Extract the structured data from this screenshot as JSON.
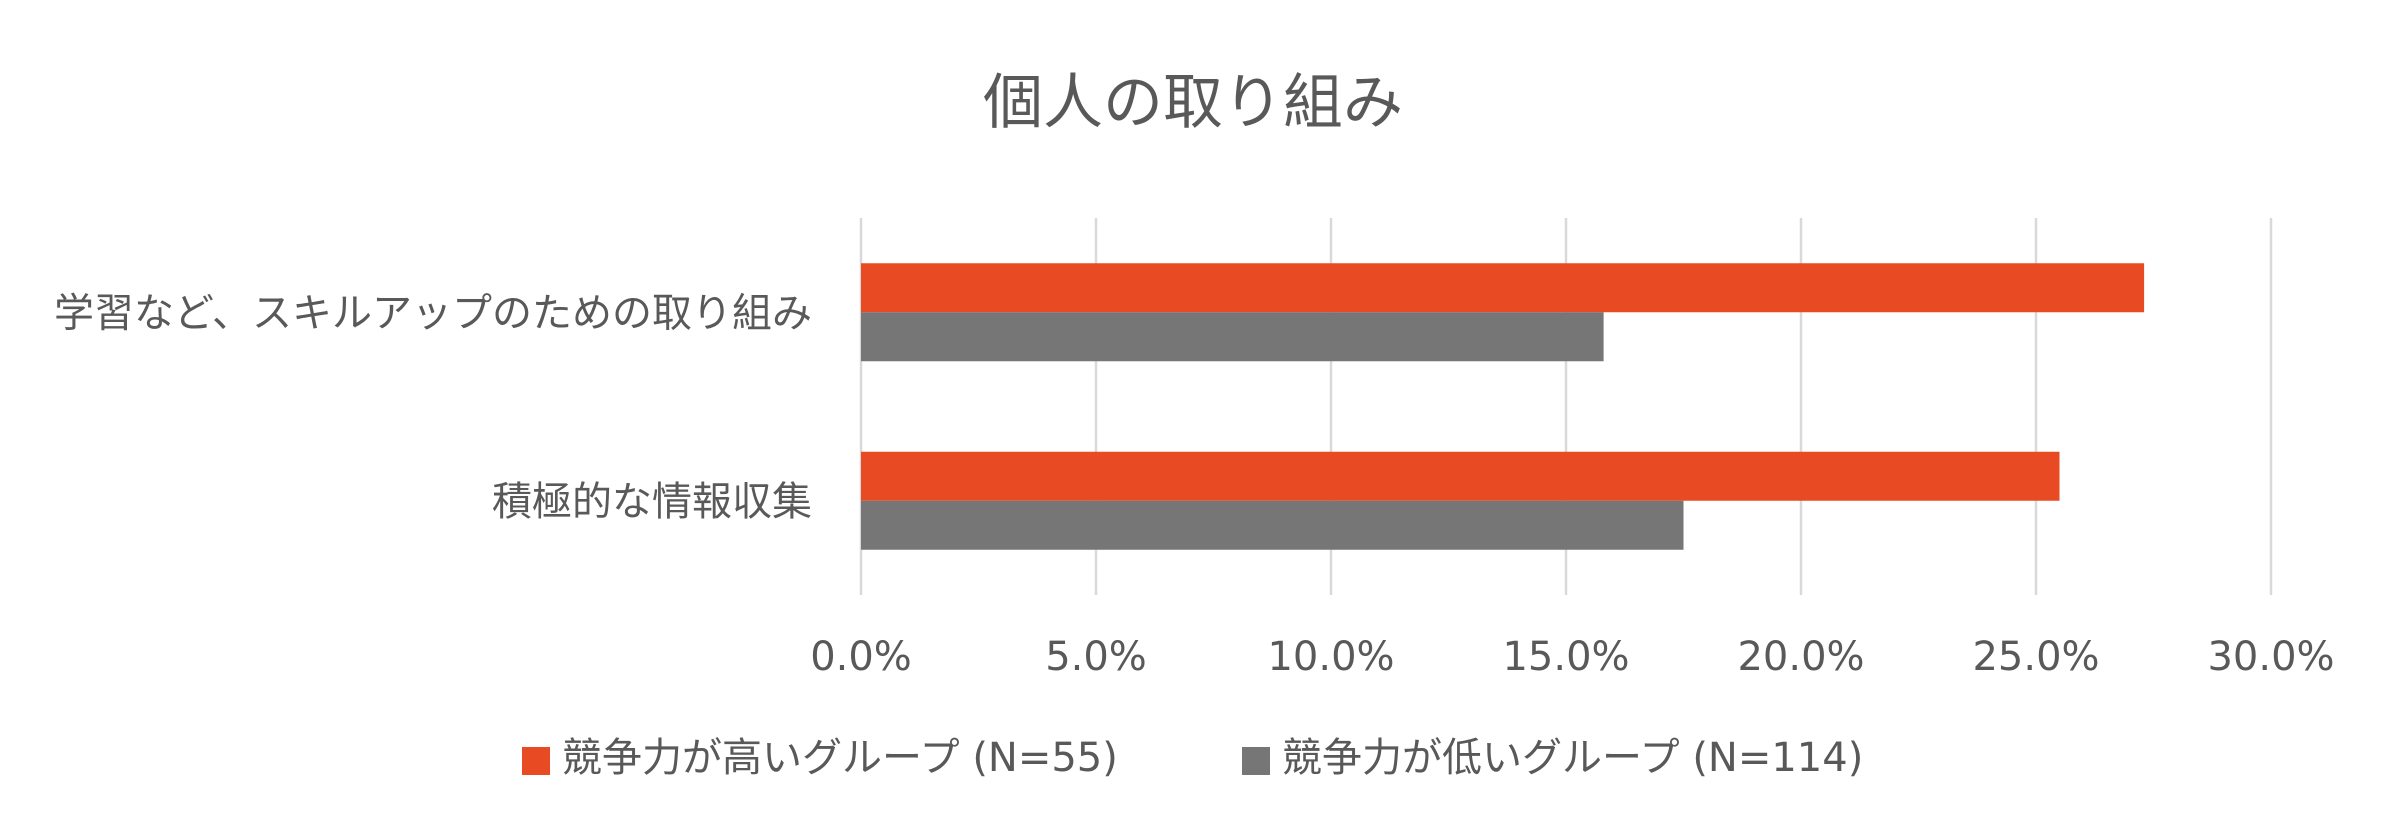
{
  "chart_data": {
    "type": "bar",
    "orientation": "horizontal",
    "title": "個人の取り組み",
    "categories": [
      "学習など、スキルアップのための取り組み",
      "積極的な情報収集"
    ],
    "series": [
      {
        "name": "競争力が高いグループ (N=55)",
        "values": [
          27.3,
          25.5
        ],
        "color": "#E84A23"
      },
      {
        "name": "競争力が低いグループ (N=114)",
        "values": [
          15.8,
          17.5
        ],
        "color": "#767676"
      }
    ],
    "x_ticks": [
      "0.0%",
      "5.0%",
      "10.0%",
      "15.0%",
      "20.0%",
      "25.0%",
      "30.0%"
    ],
    "xlim": [
      0,
      30
    ],
    "unit": "%",
    "grid": "vertical",
    "legend": "bottom"
  }
}
